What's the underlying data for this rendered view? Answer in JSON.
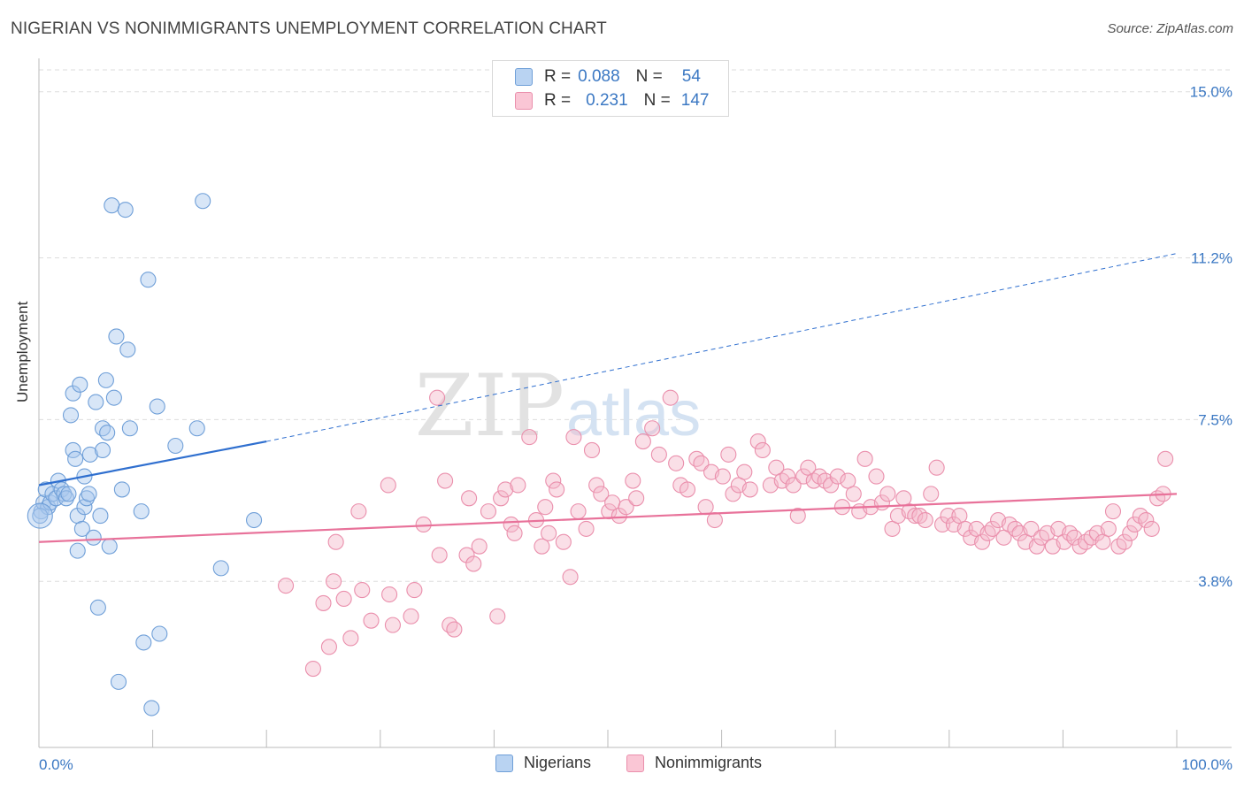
{
  "title": "NIGERIAN VS NONIMMIGRANTS UNEMPLOYMENT CORRELATION CHART",
  "source": "Source: ZipAtlas.com",
  "watermark": {
    "zip": "ZIP",
    "atlas": "atlas"
  },
  "legend_top": {
    "rows": [
      {
        "r_label": "R =",
        "r_value": "0.088",
        "n_label": "N =",
        "n_value": "54"
      },
      {
        "r_label": "R =",
        "r_value": "0.231",
        "n_label": "N =",
        "n_value": "147"
      }
    ]
  },
  "colors": {
    "blue_fill": "#a9c8ee",
    "blue_stroke": "#6f9fd8",
    "blue_line": "#2f6fcf",
    "pink_fill": "#f5b9ca",
    "pink_stroke": "#ea8fac",
    "pink_line": "#e8729a",
    "tick_label": "#3b78c3",
    "grid": "#dddddd"
  },
  "chart_data": {
    "type": "scatter",
    "title": "NIGERIAN VS NONIMMIGRANTS UNEMPLOYMENT CORRELATION CHART",
    "xlabel": "",
    "ylabel": "Unemployment",
    "xlim": [
      0,
      100
    ],
    "ylim": [
      0,
      15.5
    ],
    "x_tick_labels": [
      "0.0%",
      "100.0%"
    ],
    "y_ticks": [
      3.8,
      7.5,
      11.2,
      15.0
    ],
    "y_tick_labels": [
      "3.8%",
      "7.5%",
      "11.2%",
      "15.0%"
    ],
    "grid": true,
    "legend_position": "bottom",
    "series": [
      {
        "name": "Nigerians",
        "color": "#a9c8ee",
        "trend": {
          "x": [
            0,
            20
          ],
          "y": [
            6.0,
            7.0
          ]
        },
        "trend_extension": {
          "x": [
            20,
            100
          ],
          "y": [
            7.0,
            11.3
          ]
        },
        "points": [
          [
            0.2,
            5.4
          ],
          [
            0.4,
            5.6
          ],
          [
            0.6,
            5.9
          ],
          [
            0.8,
            5.5
          ],
          [
            1.0,
            5.6
          ],
          [
            1.2,
            5.8
          ],
          [
            1.5,
            5.7
          ],
          [
            1.7,
            6.1
          ],
          [
            2.0,
            5.9
          ],
          [
            2.2,
            5.8
          ],
          [
            2.4,
            5.7
          ],
          [
            2.6,
            5.8
          ],
          [
            2.8,
            7.6
          ],
          [
            3.0,
            8.1
          ],
          [
            3.0,
            6.8
          ],
          [
            3.2,
            6.6
          ],
          [
            3.4,
            5.3
          ],
          [
            3.4,
            4.5
          ],
          [
            3.6,
            8.3
          ],
          [
            3.8,
            5.0
          ],
          [
            4.0,
            5.5
          ],
          [
            4.0,
            6.2
          ],
          [
            4.2,
            5.7
          ],
          [
            4.4,
            5.8
          ],
          [
            4.5,
            6.7
          ],
          [
            4.8,
            4.8
          ],
          [
            5.0,
            7.9
          ],
          [
            5.2,
            3.2
          ],
          [
            5.4,
            5.3
          ],
          [
            5.6,
            6.8
          ],
          [
            5.6,
            7.3
          ],
          [
            5.9,
            8.4
          ],
          [
            6.0,
            7.2
          ],
          [
            6.2,
            4.6
          ],
          [
            6.4,
            12.4
          ],
          [
            6.6,
            8.0
          ],
          [
            6.8,
            9.4
          ],
          [
            7.0,
            1.5
          ],
          [
            7.3,
            5.9
          ],
          [
            7.6,
            12.3
          ],
          [
            7.8,
            9.1
          ],
          [
            8.0,
            7.3
          ],
          [
            9.0,
            5.4
          ],
          [
            9.2,
            2.4
          ],
          [
            9.6,
            10.7
          ],
          [
            9.9,
            0.9
          ],
          [
            10.4,
            7.8
          ],
          [
            10.6,
            2.6
          ],
          [
            12.0,
            6.9
          ],
          [
            13.9,
            7.3
          ],
          [
            14.4,
            12.5
          ],
          [
            16.0,
            4.1
          ],
          [
            18.9,
            5.2
          ],
          [
            0.1,
            5.3
          ]
        ]
      },
      {
        "name": "Nonimmigrants",
        "color": "#f5b9ca",
        "trend": {
          "x": [
            0,
            100
          ],
          "y": [
            4.7,
            5.8
          ]
        },
        "points": [
          [
            21.7,
            3.7
          ],
          [
            24.1,
            1.8
          ],
          [
            25.0,
            3.3
          ],
          [
            25.5,
            2.3
          ],
          [
            25.9,
            3.8
          ],
          [
            26.1,
            4.7
          ],
          [
            26.8,
            3.4
          ],
          [
            27.4,
            2.5
          ],
          [
            28.1,
            5.4
          ],
          [
            28.4,
            3.6
          ],
          [
            29.2,
            2.9
          ],
          [
            30.7,
            6.0
          ],
          [
            30.8,
            3.5
          ],
          [
            31.1,
            2.8
          ],
          [
            32.7,
            3.0
          ],
          [
            33.0,
            3.6
          ],
          [
            33.8,
            5.1
          ],
          [
            35.0,
            8.0
          ],
          [
            35.2,
            4.4
          ],
          [
            35.7,
            6.1
          ],
          [
            36.1,
            2.8
          ],
          [
            36.5,
            2.7
          ],
          [
            37.6,
            4.4
          ],
          [
            37.8,
            5.7
          ],
          [
            38.2,
            4.2
          ],
          [
            38.7,
            4.6
          ],
          [
            39.5,
            5.4
          ],
          [
            40.3,
            3.0
          ],
          [
            40.6,
            5.7
          ],
          [
            41.0,
            5.9
          ],
          [
            41.5,
            5.1
          ],
          [
            41.8,
            4.9
          ],
          [
            42.1,
            6.0
          ],
          [
            43.1,
            7.1
          ],
          [
            43.7,
            5.2
          ],
          [
            44.2,
            4.6
          ],
          [
            44.5,
            5.5
          ],
          [
            44.8,
            4.9
          ],
          [
            45.2,
            6.1
          ],
          [
            45.5,
            5.9
          ],
          [
            46.1,
            4.7
          ],
          [
            46.7,
            3.9
          ],
          [
            47.0,
            7.1
          ],
          [
            47.4,
            5.4
          ],
          [
            48.1,
            5.0
          ],
          [
            48.6,
            6.8
          ],
          [
            49.0,
            6.0
          ],
          [
            49.4,
            5.8
          ],
          [
            50.1,
            5.4
          ],
          [
            50.4,
            5.6
          ],
          [
            51.0,
            5.3
          ],
          [
            51.6,
            5.5
          ],
          [
            52.2,
            6.1
          ],
          [
            52.5,
            5.7
          ],
          [
            53.1,
            7.0
          ],
          [
            53.9,
            7.3
          ],
          [
            54.5,
            6.7
          ],
          [
            55.5,
            8.0
          ],
          [
            56.0,
            6.5
          ],
          [
            56.4,
            6.0
          ],
          [
            57.0,
            5.9
          ],
          [
            57.8,
            6.6
          ],
          [
            58.2,
            6.5
          ],
          [
            58.6,
            5.5
          ],
          [
            59.1,
            6.3
          ],
          [
            59.4,
            5.2
          ],
          [
            60.1,
            6.2
          ],
          [
            60.6,
            6.7
          ],
          [
            61.0,
            5.8
          ],
          [
            61.5,
            6.0
          ],
          [
            62.0,
            6.3
          ],
          [
            62.5,
            5.9
          ],
          [
            63.2,
            7.0
          ],
          [
            63.6,
            6.8
          ],
          [
            64.3,
            6.0
          ],
          [
            64.8,
            6.4
          ],
          [
            65.3,
            6.1
          ],
          [
            65.8,
            6.2
          ],
          [
            66.3,
            6.0
          ],
          [
            66.7,
            5.3
          ],
          [
            67.2,
            6.2
          ],
          [
            67.6,
            6.4
          ],
          [
            68.1,
            6.1
          ],
          [
            68.6,
            6.2
          ],
          [
            69.1,
            6.1
          ],
          [
            69.6,
            6.0
          ],
          [
            70.2,
            6.2
          ],
          [
            70.6,
            5.5
          ],
          [
            71.1,
            6.1
          ],
          [
            71.6,
            5.8
          ],
          [
            72.1,
            5.4
          ],
          [
            72.6,
            6.6
          ],
          [
            73.1,
            5.5
          ],
          [
            73.6,
            6.2
          ],
          [
            74.1,
            5.6
          ],
          [
            74.6,
            5.8
          ],
          [
            75.0,
            5.0
          ],
          [
            75.5,
            5.3
          ],
          [
            76.0,
            5.7
          ],
          [
            76.5,
            5.4
          ],
          [
            77.0,
            5.3
          ],
          [
            77.4,
            5.3
          ],
          [
            77.9,
            5.2
          ],
          [
            78.4,
            5.8
          ],
          [
            78.9,
            6.4
          ],
          [
            79.4,
            5.1
          ],
          [
            79.9,
            5.3
          ],
          [
            80.4,
            5.1
          ],
          [
            80.9,
            5.3
          ],
          [
            81.4,
            5.0
          ],
          [
            81.9,
            4.8
          ],
          [
            82.4,
            5.0
          ],
          [
            82.9,
            4.7
          ],
          [
            83.4,
            4.9
          ],
          [
            83.8,
            5.0
          ],
          [
            84.3,
            5.2
          ],
          [
            84.8,
            4.8
          ],
          [
            85.3,
            5.1
          ],
          [
            85.8,
            5.0
          ],
          [
            86.2,
            4.9
          ],
          [
            86.7,
            4.7
          ],
          [
            87.2,
            5.0
          ],
          [
            87.7,
            4.6
          ],
          [
            88.1,
            4.8
          ],
          [
            88.6,
            4.9
          ],
          [
            89.1,
            4.6
          ],
          [
            89.6,
            5.0
          ],
          [
            90.1,
            4.7
          ],
          [
            90.6,
            4.9
          ],
          [
            91.0,
            4.8
          ],
          [
            91.5,
            4.6
          ],
          [
            92.0,
            4.7
          ],
          [
            92.5,
            4.8
          ],
          [
            93.0,
            4.9
          ],
          [
            93.5,
            4.7
          ],
          [
            94.0,
            5.0
          ],
          [
            94.4,
            5.4
          ],
          [
            94.9,
            4.6
          ],
          [
            95.4,
            4.7
          ],
          [
            95.9,
            4.9
          ],
          [
            96.3,
            5.1
          ],
          [
            96.8,
            5.3
          ],
          [
            97.3,
            5.2
          ],
          [
            97.8,
            5.0
          ],
          [
            98.3,
            5.7
          ],
          [
            99.0,
            6.6
          ],
          [
            98.8,
            5.8
          ]
        ]
      }
    ]
  }
}
